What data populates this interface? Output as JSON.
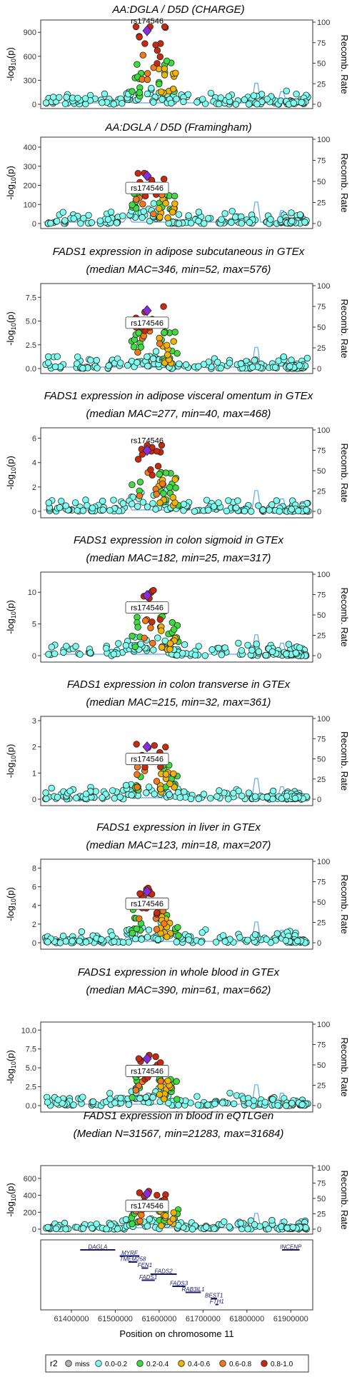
{
  "colors": {
    "lead": "#8a2be2",
    "miss": "#b3b3b3",
    "r2_0_0_2": "#7fffef",
    "r2_0_2_0_4": "#3fdc3f",
    "r2_0_4_0_6": "#f2b400",
    "r2_0_6_0_8": "#f27a1a",
    "r2_0_8_1_0": "#c82a10",
    "recomb_line": "#5ca8f0",
    "gene": "#1a1a70"
  },
  "lead_snp": "rs174546",
  "y2_label": "Recomb. Rate",
  "y1_label_prefix": "-log",
  "y1_label_sub": "10",
  "y1_label_suffix": "(p)",
  "x_label": "Position on chromosome 11",
  "chart_data": [
    {
      "type": "scatter",
      "title": [
        "AA:DGLA / D5D (CHARGE)"
      ],
      "y_ticks": [
        0,
        300,
        600,
        900
      ],
      "y_tick_labels": [
        "0",
        "300",
        "600",
        "900"
      ],
      "ylim": [
        0,
        1000
      ],
      "lead_y": 920,
      "label_mode": "plain",
      "y2_ticks": [
        0,
        25,
        50,
        75,
        100
      ],
      "y2lim": [
        0,
        100
      ]
    },
    {
      "type": "scatter",
      "title": [
        "AA:DGLA / D5D (Framingham)"
      ],
      "y_ticks": [
        0,
        100,
        200,
        300,
        400
      ],
      "y_tick_labels": [
        "0",
        "100",
        "200",
        "300",
        "400"
      ],
      "ylim": [
        0,
        430
      ],
      "lead_y": 250,
      "label_mode": "box",
      "y2_ticks": [
        0,
        25,
        50,
        75,
        100
      ],
      "y2lim": [
        0,
        100
      ]
    },
    {
      "type": "scatter",
      "title": [
        "FADS1 expression in adipose subcutaneous in GTEx",
        "(median MAC=346, min=52, max=576)"
      ],
      "y_ticks": [
        0,
        2.5,
        5,
        7.5
      ],
      "y_tick_labels": [
        "0.0",
        "2.5",
        "5.0",
        "7.5"
      ],
      "ylim": [
        0,
        8.5
      ],
      "lead_y": 6.1,
      "label_mode": "box",
      "y2_ticks": [
        0,
        25,
        50,
        75,
        100
      ],
      "y2lim": [
        0,
        100
      ]
    },
    {
      "type": "scatter",
      "title": [
        "FADS1 expression in adipose visceral omentum in GTEx",
        "(median MAC=277, min=40, max=468)"
      ],
      "y_ticks": [
        0,
        2,
        4,
        6
      ],
      "y_tick_labels": [
        "0",
        "2",
        "4",
        "6"
      ],
      "ylim": [
        0,
        6.5
      ],
      "lead_y": 5.0,
      "label_mode": "plain",
      "y2_ticks": [
        0,
        25,
        50,
        75,
        100
      ],
      "y2lim": [
        0,
        100
      ]
    },
    {
      "type": "scatter",
      "title": [
        "FADS1 expression in colon sigmoid in GTEx",
        "(median MAC=182, min=25, max=317)"
      ],
      "y_ticks": [
        0,
        5,
        10
      ],
      "y_tick_labels": [
        "0",
        "5",
        "10"
      ],
      "ylim": [
        0,
        12.5
      ],
      "lead_y": 9.5,
      "label_mode": "box",
      "y2_ticks": [
        0,
        25,
        50,
        75,
        100
      ],
      "y2lim": [
        0,
        100
      ]
    },
    {
      "type": "scatter",
      "title": [
        "FADS1 expression in colon transverse in GTEx",
        "(median MAC=215, min=32, max=361)"
      ],
      "y_ticks": [
        0,
        1,
        2,
        3
      ],
      "y_tick_labels": [
        "0",
        "1",
        "2",
        "3"
      ],
      "ylim": [
        0,
        3
      ],
      "lead_y": 2.0,
      "label_mode": "box",
      "y2_ticks": [
        0,
        25,
        50,
        75,
        100
      ],
      "y2lim": [
        0,
        100
      ]
    },
    {
      "type": "scatter",
      "title": [
        "FADS1 expression in liver in GTEx",
        "(median MAC=123, min=18, max=207)"
      ],
      "y_ticks": [
        0,
        2,
        4,
        6,
        8
      ],
      "y_tick_labels": [
        "0",
        "2",
        "4",
        "6",
        "8"
      ],
      "ylim": [
        0,
        8.5
      ],
      "lead_y": 5.5,
      "label_mode": "box",
      "y2_ticks": [
        0,
        25,
        50,
        75,
        100
      ],
      "y2lim": [
        0,
        100
      ]
    },
    {
      "type": "scatter",
      "title": [
        "FADS1 expression in whole blood in GTEx",
        "(median MAC=390, min=61, max=662)"
      ],
      "y_ticks": [
        0,
        2.5,
        5,
        7.5,
        10
      ],
      "y_tick_labels": [
        "0.0",
        "2.5",
        "5.0",
        "7.5",
        "10.0"
      ],
      "ylim": [
        0,
        10.5
      ],
      "lead_y": 6.2,
      "label_mode": "box",
      "y2_ticks": [
        0,
        25,
        50,
        75,
        100
      ],
      "y2lim": [
        0,
        100
      ]
    },
    {
      "type": "scatter",
      "title": [
        "FADS1 expression in blood in eQTLGen",
        "(Median N=31567, min=21283, max=31684)"
      ],
      "y_ticks": [
        0,
        200,
        400,
        600
      ],
      "y_tick_labels": [
        "0",
        "200",
        "400",
        "600"
      ],
      "ylim": [
        0,
        700
      ],
      "lead_y": 420,
      "label_mode": "box",
      "y2_ticks": [
        0,
        25,
        50,
        75,
        100
      ],
      "y2lim": [
        0,
        100
      ]
    }
  ],
  "gene_track": {
    "x_ticks": [
      61400000,
      61500000,
      61600000,
      61700000,
      61800000,
      61900000
    ],
    "x_tick_labels": [
      "61400000",
      "61500000",
      "61600000",
      "61700000",
      "61800000",
      "61900000"
    ],
    "xlim": [
      61330000,
      61950000
    ],
    "genes": [
      {
        "name": "DAGLA",
        "start": 61420000,
        "end": 61500000,
        "row": 0
      },
      {
        "name": "INCENP",
        "start": 61880000,
        "end": 61920000,
        "row": 0
      },
      {
        "name": "MYRF",
        "start": 61510000,
        "end": 61555000,
        "row": 1
      },
      {
        "name": "TMEM258",
        "start": 61530000,
        "end": 61550000,
        "row": 2
      },
      {
        "name": "FEN1",
        "start": 61560000,
        "end": 61575000,
        "row": 3
      },
      {
        "name": "FADS2",
        "start": 61580000,
        "end": 61640000,
        "row": 4
      },
      {
        "name": "FADS1",
        "start": 61560000,
        "end": 61590000,
        "row": 5
      },
      {
        "name": "FADS3",
        "start": 61630000,
        "end": 61660000,
        "row": 6
      },
      {
        "name": "RAB3IL1",
        "start": 61660000,
        "end": 61695000,
        "row": 7
      },
      {
        "name": "BEST1",
        "start": 61718000,
        "end": 61732000,
        "row": 8
      },
      {
        "name": "FTH1",
        "start": 61728000,
        "end": 61735000,
        "row": 9
      }
    ]
  },
  "legend": {
    "title": "r2",
    "items": [
      {
        "label": "miss",
        "key": "miss"
      },
      {
        "label": "0.0-0.2",
        "key": "r2_0_0_2"
      },
      {
        "label": "0.2-0.4",
        "key": "r2_0_2_0_4"
      },
      {
        "label": "0.4-0.6",
        "key": "r2_0_4_0_6"
      },
      {
        "label": "0.6-0.8",
        "key": "r2_0_6_0_8"
      },
      {
        "label": "0.8-1.0",
        "key": "r2_0_8_1_0"
      }
    ]
  }
}
